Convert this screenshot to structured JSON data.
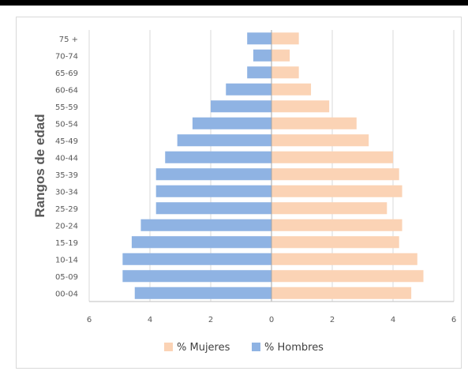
{
  "chart_data": {
    "type": "bar",
    "orientation": "horizontal",
    "title": "",
    "xlabel": "",
    "ylabel": "Rangos de edad",
    "categories": [
      "00-04",
      "05-09",
      "10-14",
      "15-19",
      "20-24",
      "25-29",
      "30-34",
      "35-39",
      "40-44",
      "45-49",
      "50-54",
      "55-59",
      "60-64",
      "65-69",
      "70-74",
      "75 +"
    ],
    "series": [
      {
        "name": "% Mujeres",
        "color": "#fbd3b5",
        "side": "right",
        "values": [
          4.6,
          5.0,
          4.8,
          4.2,
          4.3,
          3.8,
          4.3,
          4.2,
          4.0,
          3.2,
          2.8,
          1.9,
          1.3,
          0.9,
          0.6,
          0.9
        ]
      },
      {
        "name": "% Hombres",
        "color": "#8fb3e3",
        "side": "left",
        "values": [
          4.5,
          4.9,
          4.9,
          4.6,
          4.3,
          3.8,
          3.8,
          3.8,
          3.5,
          3.1,
          2.6,
          2.0,
          1.5,
          0.8,
          0.6,
          0.8
        ]
      }
    ],
    "xlim": [
      -6,
      6
    ],
    "xticks": [
      6,
      4,
      2,
      0,
      2,
      4,
      6
    ],
    "grid": true,
    "legend_position": "bottom"
  }
}
